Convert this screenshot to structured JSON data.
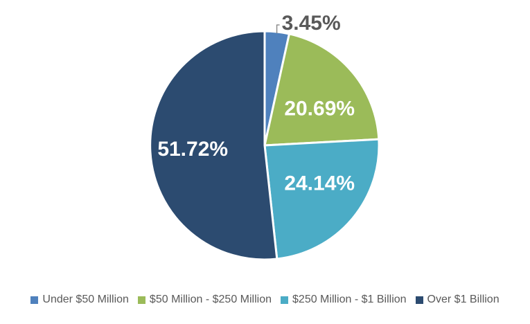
{
  "chart_data": {
    "type": "pie",
    "title": "",
    "categories": [
      "Under $50 Million",
      "$50 Million - $250 Million",
      "$250 Million - $1 Billion",
      "Over $1 Billion"
    ],
    "values": [
      3.45,
      20.69,
      24.14,
      51.72
    ],
    "labels": [
      "3.45%",
      "20.69%",
      "24.14%",
      "51.72%"
    ],
    "colors": [
      "#4F81BD",
      "#9BBB59",
      "#4BACC6",
      "#2C4B70"
    ],
    "start_angle_deg": 0,
    "direction": "clockwise",
    "legend_position": "bottom",
    "grid": "off",
    "inside_label_color": "#FFFFFF",
    "outside_label_color": "#595959",
    "leader_line_color": "#7F7F7F",
    "slice_border_color": "#FFFFFF",
    "background_color": "#FFFFFF"
  }
}
